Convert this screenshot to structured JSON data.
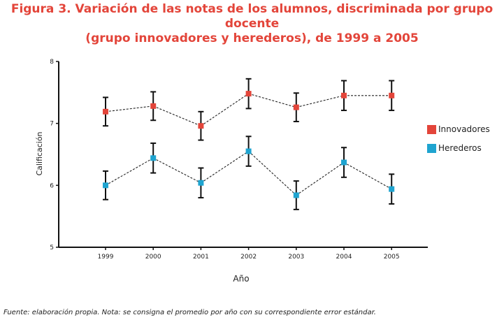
{
  "chart_data": {
    "type": "line",
    "title_line1": "Figura 3. Variación de las notas de los alumnos, discriminada por grupo docente",
    "title_line2": "(grupo innovadores y herederos), de 1999 a 2005",
    "xlabel": "Año",
    "ylabel": "Calificación",
    "categories": [
      "1999",
      "2000",
      "2001",
      "2002",
      "2003",
      "2004",
      "2005"
    ],
    "y_ticks": [
      "5",
      "6",
      "7",
      "8"
    ],
    "ylim": [
      5,
      8
    ],
    "series": [
      {
        "name": "Innovadores",
        "color": "#e3453a",
        "values": [
          7.19,
          7.28,
          6.96,
          7.48,
          7.26,
          7.45,
          7.45
        ],
        "error": [
          0.23,
          0.23,
          0.23,
          0.24,
          0.23,
          0.24,
          0.24
        ]
      },
      {
        "name": "Herederos",
        "color": "#1fa4d0",
        "values": [
          6.0,
          6.44,
          6.04,
          6.55,
          5.84,
          6.37,
          5.94
        ],
        "error": [
          0.23,
          0.24,
          0.24,
          0.24,
          0.23,
          0.24,
          0.24
        ]
      }
    ],
    "legend_position": "right"
  },
  "footnote": "Fuente: elaboración propia. Nota: se consigna el promedio por año con su correspondiente error estándar."
}
